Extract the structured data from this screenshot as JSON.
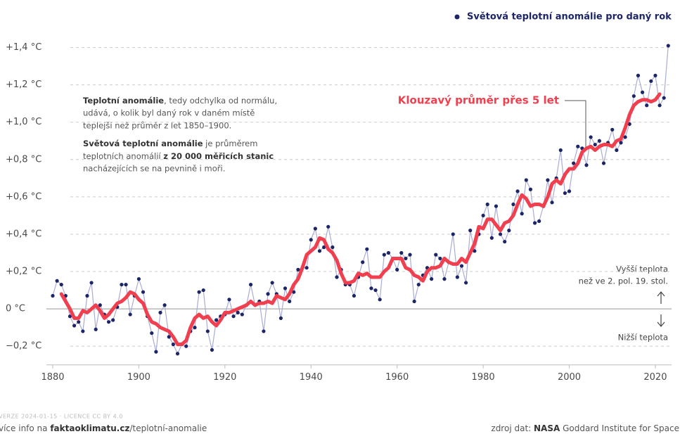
{
  "chart_data": {
    "type": "line",
    "note": [
      "Teplotní anomálie",
      ", tedy odchylka od normálu,",
      "udává, o kolik byl daný rok v daném místě",
      "teplejší než průměr z let 1850–1900.",
      "Světová teplotní anomálie",
      " je průměrem",
      "teplotních anomálií ",
      "z 20 000 měřicích stanic",
      "nacházejících se na pevnině i moři."
    ],
    "warmer": [
      "Vyšší teplota",
      "než ve 2. pol. 19. stol."
    ],
    "cooler": "Nižší teplota",
    "xlim": [
      1880,
      2024
    ],
    "xticks": [
      1880,
      1900,
      1920,
      1940,
      1960,
      1980,
      2000,
      2020
    ],
    "ylim": [
      -0.3,
      1.45
    ],
    "yticks": [
      {
        "value": -0.2,
        "label": "−0,2 °C"
      },
      {
        "value": 0,
        "label": "0 °C"
      },
      {
        "value": 0.2,
        "label": "+0,2 °C"
      },
      {
        "value": 0.4,
        "label": "+0,4 °C"
      },
      {
        "value": 0.6,
        "label": "+0,6 °C"
      },
      {
        "value": 0.8,
        "label": "+0,8 °C"
      },
      {
        "value": 1.0,
        "label": "+1,0 °C"
      },
      {
        "value": 1.2,
        "label": "+1,2 °C"
      },
      {
        "value": 1.4,
        "label": "+1,4 °C"
      }
    ],
    "grid": true,
    "series": [
      {
        "name": "Světová teplotní anomálie pro daný rok",
        "color": "#1c2566",
        "line_color": "#a9acd6",
        "x": [
          1880,
          1881,
          1882,
          1883,
          1884,
          1885,
          1886,
          1887,
          1888,
          1889,
          1890,
          1891,
          1892,
          1893,
          1894,
          1895,
          1896,
          1897,
          1898,
          1899,
          1900,
          1901,
          1902,
          1903,
          1904,
          1905,
          1906,
          1907,
          1908,
          1909,
          1910,
          1911,
          1912,
          1913,
          1914,
          1915,
          1916,
          1917,
          1918,
          1919,
          1920,
          1921,
          1922,
          1923,
          1924,
          1925,
          1926,
          1927,
          1928,
          1929,
          1930,
          1931,
          1932,
          1933,
          1934,
          1935,
          1936,
          1937,
          1938,
          1939,
          1940,
          1941,
          1942,
          1943,
          1944,
          1945,
          1946,
          1947,
          1948,
          1949,
          1950,
          1951,
          1952,
          1953,
          1954,
          1955,
          1956,
          1957,
          1958,
          1959,
          1960,
          1961,
          1962,
          1963,
          1964,
          1965,
          1966,
          1967,
          1968,
          1969,
          1970,
          1971,
          1972,
          1973,
          1974,
          1975,
          1976,
          1977,
          1978,
          1979,
          1980,
          1981,
          1982,
          1983,
          1984,
          1985,
          1986,
          1987,
          1988,
          1989,
          1990,
          1991,
          1992,
          1993,
          1994,
          1995,
          1996,
          1997,
          1998,
          1999,
          2000,
          2001,
          2002,
          2003,
          2004,
          2005,
          2006,
          2007,
          2008,
          2009,
          2010,
          2011,
          2012,
          2013,
          2014,
          2015,
          2016,
          2017,
          2018,
          2019,
          2020,
          2021,
          2022,
          2023
        ],
        "values": [
          0.07,
          0.15,
          0.13,
          0.07,
          -0.04,
          -0.09,
          -0.07,
          -0.12,
          0.07,
          0.14,
          -0.11,
          0.02,
          -0.03,
          -0.07,
          -0.06,
          0.01,
          0.13,
          0.13,
          -0.03,
          0.07,
          0.16,
          0.09,
          -0.04,
          -0.13,
          -0.23,
          -0.02,
          0.02,
          -0.15,
          -0.19,
          -0.24,
          -0.19,
          -0.2,
          -0.12,
          -0.1,
          0.09,
          0.1,
          -0.12,
          -0.22,
          -0.06,
          -0.04,
          -0.03,
          0.05,
          -0.04,
          -0.02,
          -0.03,
          0.02,
          0.13,
          0.02,
          0.04,
          -0.12,
          0.08,
          0.14,
          0.08,
          -0.05,
          0.11,
          0.04,
          0.09,
          0.21,
          0.22,
          0.22,
          0.37,
          0.43,
          0.31,
          0.33,
          0.44,
          0.33,
          0.17,
          0.21,
          0.13,
          0.13,
          0.07,
          0.17,
          0.25,
          0.32,
          0.11,
          0.1,
          0.05,
          0.29,
          0.3,
          0.27,
          0.21,
          0.3,
          0.27,
          0.29,
          0.04,
          0.13,
          0.18,
          0.22,
          0.16,
          0.29,
          0.27,
          0.16,
          0.25,
          0.4,
          0.17,
          0.23,
          0.14,
          0.42,
          0.31,
          0.4,
          0.5,
          0.56,
          0.38,
          0.55,
          0.4,
          0.36,
          0.42,
          0.56,
          0.63,
          0.51,
          0.69,
          0.64,
          0.46,
          0.47,
          0.55,
          0.69,
          0.57,
          0.7,
          0.85,
          0.62,
          0.63,
          0.78,
          0.87,
          0.86,
          0.77,
          0.92,
          0.88,
          0.9,
          0.78,
          0.89,
          0.96,
          0.85,
          0.89,
          0.92,
          0.99,
          1.14,
          1.25,
          1.16,
          1.09,
          1.22,
          1.25,
          1.09,
          1.13,
          1.41
        ]
      },
      {
        "name": "Klouzavý průměr přes 5 let",
        "color": "#f0404f",
        "x": [
          1882,
          1883,
          1884,
          1885,
          1886,
          1887,
          1888,
          1889,
          1890,
          1891,
          1892,
          1893,
          1894,
          1895,
          1896,
          1897,
          1898,
          1899,
          1900,
          1901,
          1902,
          1903,
          1904,
          1905,
          1906,
          1907,
          1908,
          1909,
          1910,
          1911,
          1912,
          1913,
          1914,
          1915,
          1916,
          1917,
          1918,
          1919,
          1920,
          1921,
          1922,
          1923,
          1924,
          1925,
          1926,
          1927,
          1928,
          1929,
          1930,
          1931,
          1932,
          1933,
          1934,
          1935,
          1936,
          1937,
          1938,
          1939,
          1940,
          1941,
          1942,
          1943,
          1944,
          1945,
          1946,
          1947,
          1948,
          1949,
          1950,
          1951,
          1952,
          1953,
          1954,
          1955,
          1956,
          1957,
          1958,
          1959,
          1960,
          1961,
          1962,
          1963,
          1964,
          1965,
          1966,
          1967,
          1968,
          1969,
          1970,
          1971,
          1972,
          1973,
          1974,
          1975,
          1976,
          1977,
          1978,
          1979,
          1980,
          1981,
          1982,
          1983,
          1984,
          1985,
          1986,
          1987,
          1988,
          1989,
          1990,
          1991,
          1992,
          1993,
          1994,
          1995,
          1996,
          1997,
          1998,
          1999,
          2000,
          2001,
          2002,
          2003,
          2004,
          2005,
          2006,
          2007,
          2008,
          2009,
          2010,
          2011,
          2012,
          2013,
          2014,
          2015,
          2016,
          2017,
          2018,
          2019,
          2020,
          2021
        ],
        "values": [
          0.08,
          0.04,
          0.0,
          -0.05,
          -0.05,
          -0.01,
          -0.02,
          0.0,
          0.02,
          -0.01,
          -0.05,
          -0.03,
          0.0,
          0.03,
          0.04,
          0.06,
          0.09,
          0.08,
          0.05,
          0.03,
          -0.03,
          -0.07,
          -0.08,
          -0.1,
          -0.11,
          -0.12,
          -0.15,
          -0.19,
          -0.19,
          -0.17,
          -0.1,
          -0.05,
          -0.03,
          -0.05,
          -0.04,
          -0.07,
          -0.09,
          -0.06,
          -0.02,
          -0.02,
          -0.01,
          0.0,
          0.01,
          0.02,
          0.04,
          0.02,
          0.03,
          0.03,
          0.04,
          0.03,
          0.07,
          0.06,
          0.05,
          0.08,
          0.13,
          0.16,
          0.22,
          0.29,
          0.31,
          0.33,
          0.38,
          0.37,
          0.32,
          0.3,
          0.26,
          0.19,
          0.14,
          0.14,
          0.15,
          0.19,
          0.18,
          0.19,
          0.17,
          0.17,
          0.17,
          0.2,
          0.22,
          0.27,
          0.27,
          0.27,
          0.22,
          0.21,
          0.18,
          0.17,
          0.15,
          0.2,
          0.22,
          0.22,
          0.23,
          0.27,
          0.25,
          0.24,
          0.24,
          0.27,
          0.25,
          0.3,
          0.35,
          0.44,
          0.43,
          0.48,
          0.48,
          0.45,
          0.42,
          0.46,
          0.47,
          0.5,
          0.56,
          0.61,
          0.59,
          0.55,
          0.56,
          0.56,
          0.55,
          0.6,
          0.67,
          0.69,
          0.67,
          0.72,
          0.75,
          0.75,
          0.78,
          0.84,
          0.86,
          0.87,
          0.85,
          0.87,
          0.88,
          0.88,
          0.87,
          0.9,
          0.91,
          0.97,
          1.04,
          1.09,
          1.11,
          1.12,
          1.12,
          1.11,
          1.12,
          1.15
        ]
      }
    ]
  },
  "footer": {
    "version": "VERZE 2024-01-15 · LICENCE CC BY 4.0",
    "more": [
      "více info na ",
      "faktaoklimatu.cz",
      "/teplotní-anomalie"
    ],
    "source": [
      "zdroj dat: ",
      "NASA",
      " Goddard Institute for Space"
    ]
  }
}
